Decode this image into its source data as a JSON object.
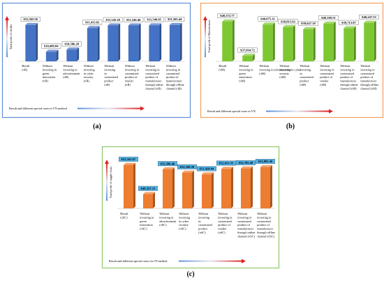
{
  "panels": [
    {
      "id": "a",
      "label": "(a)",
      "ylabel": "Total profit of retailer",
      "caption": "Result and different special cases in VN method",
      "border_color": "#5b8ed6",
      "bar_color": "#4472c4",
      "chart_data": {
        "type": "bar",
        "ylim": [
          10000,
          11800
        ],
        "categories": [
          [
            "Result",
            "(πR)"
          ],
          [
            "Without",
            "investing in",
            "green",
            "innovation",
            "(πR)"
          ],
          [
            "Without",
            "investing in",
            "advertisement",
            "(πR)"
          ],
          [
            "Without",
            "investing",
            "in cyber",
            "security",
            "(πR)"
          ],
          [
            "Without",
            "investing",
            "in",
            "customized",
            "product",
            "(πR)"
          ],
          [
            "Without",
            "investing in",
            "customized",
            "product of",
            "retailer",
            "(πR)"
          ],
          [
            "Without",
            "investing in",
            "customized",
            "product of",
            "manufacturer",
            "through online",
            "channel (πR)"
          ],
          [
            "Without",
            "investing in",
            "customized",
            "product of",
            "manufacturer",
            "through offline",
            "channel (πR)"
          ]
        ],
        "values": [
          11565.56,
          10409.84,
          10506.2,
          11433.02,
          11545.2,
          11546.46,
          11549.95,
          11565.44
        ],
        "value_labels": [
          "$11,565.56",
          "$10,409.84",
          "$10,506.20",
          "$11,433.02",
          "$11,545.20",
          "$11,546.46",
          "$11,549.95",
          "$11,565.44"
        ]
      }
    },
    {
      "id": "b",
      "label": "(b)",
      "ylabel": "Total profit of Manufacturer",
      "caption": "Result and different special cases in VN",
      "border_color": "#f0a060",
      "bar_color": "#7dc832",
      "chart_data": {
        "type": "bar",
        "ylim": [
          36500,
          40700
        ],
        "categories": [
          [
            "Result",
            "(πM)"
          ],
          [
            "Without",
            "investing in",
            "green",
            "innovation",
            "(πM)"
          ],
          [
            "Without",
            "investing in advertisement",
            "(πM)"
          ],
          [
            "Without",
            "investing in cyber",
            "security",
            "(πM)"
          ],
          [
            "Without",
            "investing",
            "in",
            "customized",
            "product",
            "(πM)"
          ],
          [
            "Without",
            "investing in",
            "customized",
            "product of",
            "retailer",
            "(πM)"
          ],
          [
            "Without",
            "investing in",
            "customized",
            "product of",
            "manufacturer",
            "through online",
            "channel (πM)"
          ],
          [
            "Without",
            "investing in",
            "customized",
            "product of",
            "manufacturer",
            "through offline",
            "channel (πM)"
          ]
        ],
        "values": [
          40372.77,
          37034.72,
          40075.31,
          39815.63,
          39627.19,
          40169.51,
          39713.87,
          40247.53
        ],
        "value_labels": [
          "$40,372.77",
          "$37,034.72",
          "$40,075.31",
          "$39,815.63",
          "$39,627.19",
          "$40,169.51",
          "$39,713.87",
          "$40,247.53"
        ]
      }
    },
    {
      "id": "c",
      "label": "(c)",
      "ylabel": "Total profit of supply chain",
      "caption": "Result and different special cases for CP method",
      "border_color": "#8ec86a",
      "bar_color": "#ed7d31",
      "chart_data": {
        "type": "bar",
        "ylim": [
          47500,
          53400
        ],
        "categories": [
          [
            "Result",
            "(πSC)"
          ],
          [
            "Without",
            "investing in",
            "green",
            "innovation",
            "(πSC)"
          ],
          [
            "Without",
            "investing in",
            "advertisement",
            "(πSC)"
          ],
          [
            "Without",
            "investing",
            "in cyber",
            "security",
            "(πSC)"
          ],
          [
            "Without",
            "investing",
            "in",
            "customized",
            "product",
            "(πSC)"
          ],
          [
            "Without",
            "investing in",
            "customized",
            "product of",
            "retailer",
            "(πSC)"
          ],
          [
            "Without",
            "investing in",
            "customized",
            "product of",
            "manufacturer",
            "through online",
            "channel (πSC)"
          ],
          [
            "Without",
            "investing in",
            "customized",
            "product of",
            "manufacturer",
            "through offline",
            "channel (πSC)"
          ]
        ],
        "values": [
          53165.67,
          49357.13,
          52586.46,
          52168.58,
          51928.84,
          52653.55,
          52705.49,
          52883.36
        ],
        "value_labels": [
          "$53,165.67",
          "$49,357.13",
          "$52,586.46",
          "$52,168.58",
          "$51,928.84",
          "$52,653.55",
          "$52,705.49",
          "$52,883.36"
        ]
      }
    }
  ]
}
